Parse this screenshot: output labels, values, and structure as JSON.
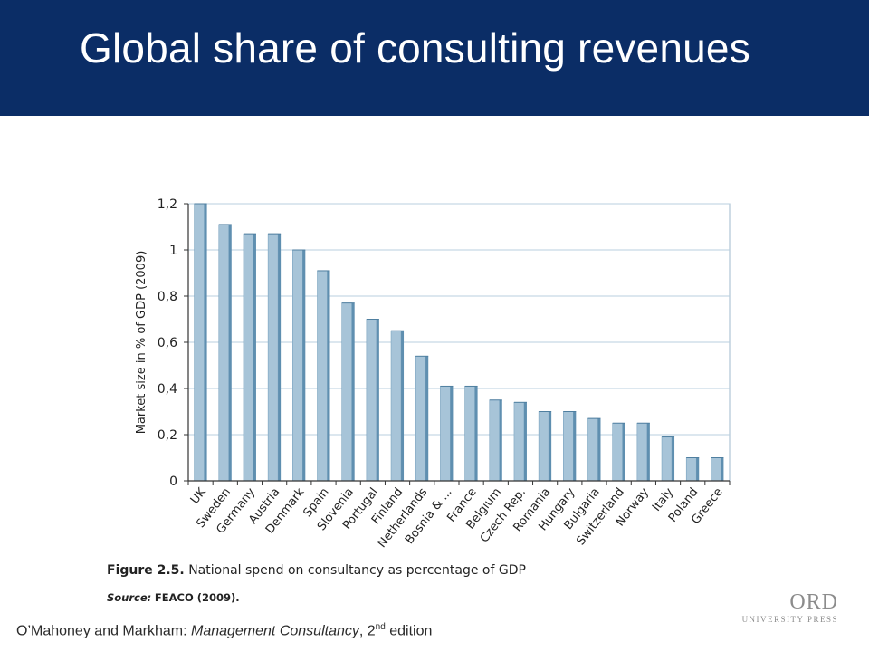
{
  "slide": {
    "title": "Global share of consulting revenues"
  },
  "figure": {
    "caption_number": "Figure 2.5.",
    "caption_text": "National spend on consultancy as percentage of GDP",
    "source_label": "Source:",
    "source_value": "FEACO (2009)."
  },
  "footer": {
    "authors": "O’Mahoney and Markham: ",
    "book_title": "Management Consultancy",
    "edition_prefix": ", 2",
    "edition_sup": "nd",
    "edition_suffix": " edition"
  },
  "logo": {
    "text_top": "ORD",
    "text_bottom": "UNIVERSITY PRESS"
  },
  "colors": {
    "header_bg": "#0b2d66",
    "bar_fill": "#a7c4d8",
    "bar_side": "#5f8fb0",
    "grid": "#b9cfdf"
  },
  "chart_data": {
    "type": "bar",
    "ylabel": "Market size in % of GDP (2009)",
    "xlabel": "",
    "ylim": [
      0,
      1.2
    ],
    "yticks": [
      "0",
      "0,2",
      "0,4",
      "0,6",
      "0,8",
      "1",
      "1,2"
    ],
    "grid": true,
    "categories": [
      "UK",
      "Sweden",
      "Germany",
      "Austria",
      "Denmark",
      "Spain",
      "Slovenia",
      "Portugal",
      "Finland",
      "Netherlands",
      "Bosnia & ...",
      "France",
      "Belgium",
      "Czech Rep.",
      "Romania",
      "Hungary",
      "Bulgaria",
      "Switzerland",
      "Norway",
      "Italy",
      "Poland",
      "Greece"
    ],
    "values": [
      1.2,
      1.11,
      1.07,
      1.07,
      1.0,
      0.91,
      0.77,
      0.7,
      0.65,
      0.54,
      0.41,
      0.41,
      0.35,
      0.34,
      0.3,
      0.3,
      0.27,
      0.25,
      0.25,
      0.19,
      0.1,
      0.1
    ]
  }
}
